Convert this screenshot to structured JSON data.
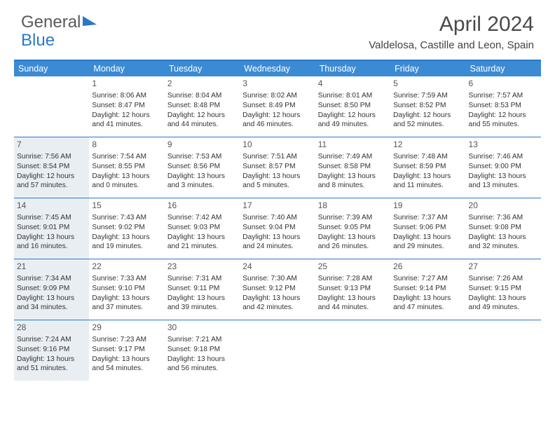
{
  "brand": {
    "part1": "General",
    "part2": "Blue"
  },
  "title": "April 2024",
  "location": "Valdelosa, Castille and Leon, Spain",
  "colors": {
    "header_bg": "#3b8bd4",
    "border": "#2b78c5",
    "shaded": "#e9eef3",
    "text": "#333333",
    "title_text": "#4a4a4a"
  },
  "day_labels": [
    "Sunday",
    "Monday",
    "Tuesday",
    "Wednesday",
    "Thursday",
    "Friday",
    "Saturday"
  ],
  "weeks": [
    [
      {
        "n": "",
        "sr": "",
        "ss": "",
        "dl": "",
        "shaded": false
      },
      {
        "n": "1",
        "sr": "8:06 AM",
        "ss": "8:47 PM",
        "dl": "12 hours and 41 minutes.",
        "shaded": false
      },
      {
        "n": "2",
        "sr": "8:04 AM",
        "ss": "8:48 PM",
        "dl": "12 hours and 44 minutes.",
        "shaded": false
      },
      {
        "n": "3",
        "sr": "8:02 AM",
        "ss": "8:49 PM",
        "dl": "12 hours and 46 minutes.",
        "shaded": false
      },
      {
        "n": "4",
        "sr": "8:01 AM",
        "ss": "8:50 PM",
        "dl": "12 hours and 49 minutes.",
        "shaded": false
      },
      {
        "n": "5",
        "sr": "7:59 AM",
        "ss": "8:52 PM",
        "dl": "12 hours and 52 minutes.",
        "shaded": false
      },
      {
        "n": "6",
        "sr": "7:57 AM",
        "ss": "8:53 PM",
        "dl": "12 hours and 55 minutes.",
        "shaded": false
      }
    ],
    [
      {
        "n": "7",
        "sr": "7:56 AM",
        "ss": "8:54 PM",
        "dl": "12 hours and 57 minutes.",
        "shaded": true
      },
      {
        "n": "8",
        "sr": "7:54 AM",
        "ss": "8:55 PM",
        "dl": "13 hours and 0 minutes.",
        "shaded": false
      },
      {
        "n": "9",
        "sr": "7:53 AM",
        "ss": "8:56 PM",
        "dl": "13 hours and 3 minutes.",
        "shaded": false
      },
      {
        "n": "10",
        "sr": "7:51 AM",
        "ss": "8:57 PM",
        "dl": "13 hours and 5 minutes.",
        "shaded": false
      },
      {
        "n": "11",
        "sr": "7:49 AM",
        "ss": "8:58 PM",
        "dl": "13 hours and 8 minutes.",
        "shaded": false
      },
      {
        "n": "12",
        "sr": "7:48 AM",
        "ss": "8:59 PM",
        "dl": "13 hours and 11 minutes.",
        "shaded": false
      },
      {
        "n": "13",
        "sr": "7:46 AM",
        "ss": "9:00 PM",
        "dl": "13 hours and 13 minutes.",
        "shaded": false
      }
    ],
    [
      {
        "n": "14",
        "sr": "7:45 AM",
        "ss": "9:01 PM",
        "dl": "13 hours and 16 minutes.",
        "shaded": true
      },
      {
        "n": "15",
        "sr": "7:43 AM",
        "ss": "9:02 PM",
        "dl": "13 hours and 19 minutes.",
        "shaded": false
      },
      {
        "n": "16",
        "sr": "7:42 AM",
        "ss": "9:03 PM",
        "dl": "13 hours and 21 minutes.",
        "shaded": false
      },
      {
        "n": "17",
        "sr": "7:40 AM",
        "ss": "9:04 PM",
        "dl": "13 hours and 24 minutes.",
        "shaded": false
      },
      {
        "n": "18",
        "sr": "7:39 AM",
        "ss": "9:05 PM",
        "dl": "13 hours and 26 minutes.",
        "shaded": false
      },
      {
        "n": "19",
        "sr": "7:37 AM",
        "ss": "9:06 PM",
        "dl": "13 hours and 29 minutes.",
        "shaded": false
      },
      {
        "n": "20",
        "sr": "7:36 AM",
        "ss": "9:08 PM",
        "dl": "13 hours and 32 minutes.",
        "shaded": false
      }
    ],
    [
      {
        "n": "21",
        "sr": "7:34 AM",
        "ss": "9:09 PM",
        "dl": "13 hours and 34 minutes.",
        "shaded": true
      },
      {
        "n": "22",
        "sr": "7:33 AM",
        "ss": "9:10 PM",
        "dl": "13 hours and 37 minutes.",
        "shaded": false
      },
      {
        "n": "23",
        "sr": "7:31 AM",
        "ss": "9:11 PM",
        "dl": "13 hours and 39 minutes.",
        "shaded": false
      },
      {
        "n": "24",
        "sr": "7:30 AM",
        "ss": "9:12 PM",
        "dl": "13 hours and 42 minutes.",
        "shaded": false
      },
      {
        "n": "25",
        "sr": "7:28 AM",
        "ss": "9:13 PM",
        "dl": "13 hours and 44 minutes.",
        "shaded": false
      },
      {
        "n": "26",
        "sr": "7:27 AM",
        "ss": "9:14 PM",
        "dl": "13 hours and 47 minutes.",
        "shaded": false
      },
      {
        "n": "27",
        "sr": "7:26 AM",
        "ss": "9:15 PM",
        "dl": "13 hours and 49 minutes.",
        "shaded": false
      }
    ],
    [
      {
        "n": "28",
        "sr": "7:24 AM",
        "ss": "9:16 PM",
        "dl": "13 hours and 51 minutes.",
        "shaded": true
      },
      {
        "n": "29",
        "sr": "7:23 AM",
        "ss": "9:17 PM",
        "dl": "13 hours and 54 minutes.",
        "shaded": false
      },
      {
        "n": "30",
        "sr": "7:21 AM",
        "ss": "9:18 PM",
        "dl": "13 hours and 56 minutes.",
        "shaded": false
      },
      {
        "n": "",
        "sr": "",
        "ss": "",
        "dl": "",
        "shaded": false
      },
      {
        "n": "",
        "sr": "",
        "ss": "",
        "dl": "",
        "shaded": false
      },
      {
        "n": "",
        "sr": "",
        "ss": "",
        "dl": "",
        "shaded": false
      },
      {
        "n": "",
        "sr": "",
        "ss": "",
        "dl": "",
        "shaded": false
      }
    ]
  ],
  "labels": {
    "sunrise": "Sunrise:",
    "sunset": "Sunset:",
    "daylight": "Daylight:"
  }
}
